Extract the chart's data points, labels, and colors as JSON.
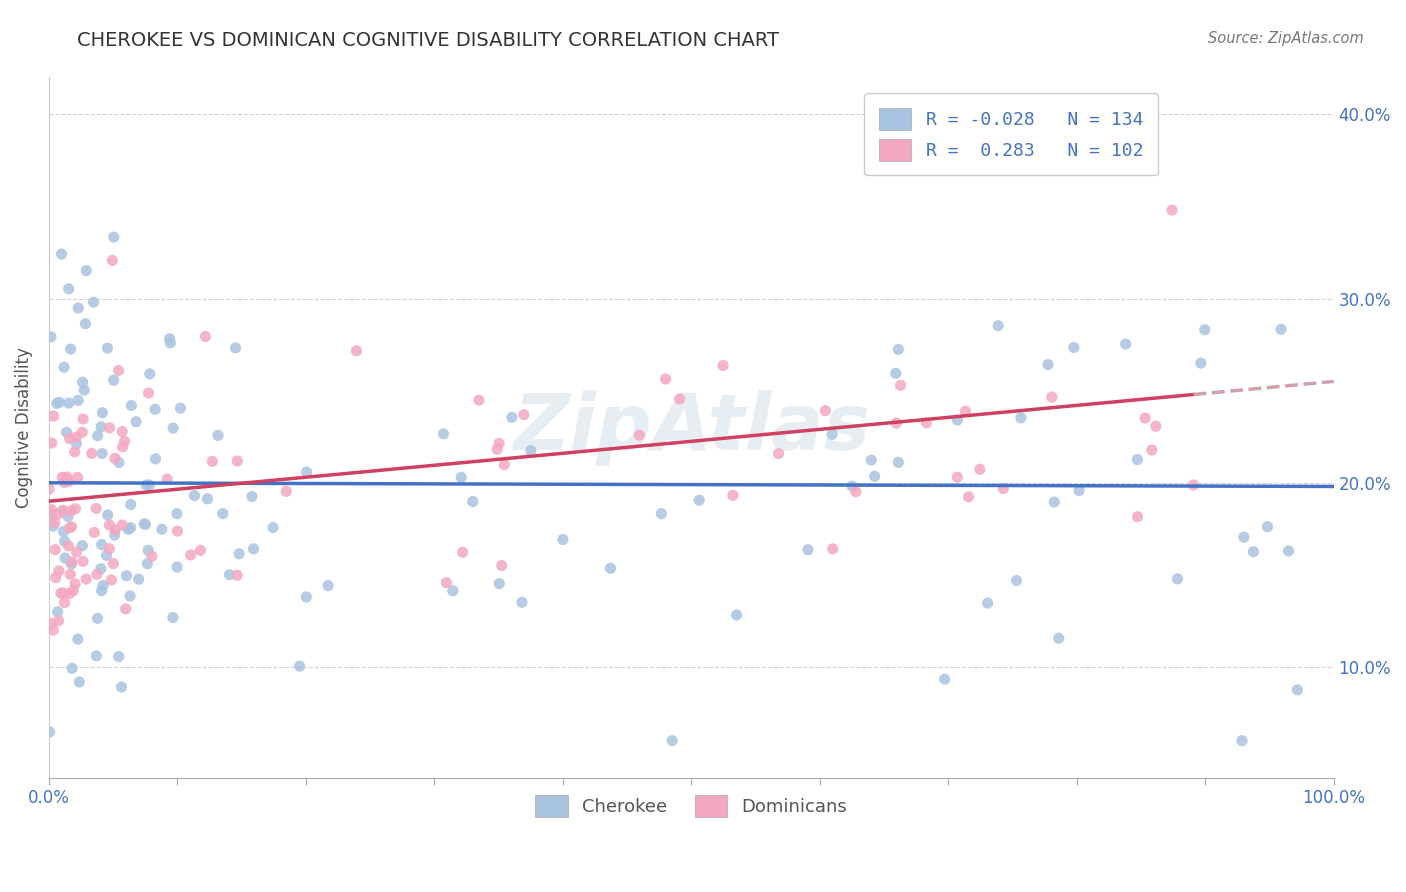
{
  "title": "CHEROKEE VS DOMINICAN COGNITIVE DISABILITY CORRELATION CHART",
  "source": "Source: ZipAtlas.com",
  "ylabel": "Cognitive Disability",
  "xlim": [
    0,
    100
  ],
  "ylim": [
    4,
    42
  ],
  "yticks": [
    10,
    20,
    30,
    40
  ],
  "ytick_labels": [
    "10.0%",
    "20.0%",
    "30.0%",
    "40.0%"
  ],
  "xticks": [
    0,
    10,
    20,
    30,
    40,
    50,
    60,
    70,
    80,
    90,
    100
  ],
  "cherokee_R": -0.028,
  "cherokee_N": 134,
  "dominican_R": 0.283,
  "dominican_N": 102,
  "cherokee_color": "#a8c4e0",
  "dominican_color": "#f4a8c0",
  "cherokee_line_color": "#4472c4",
  "dominican_line_color": "#d04060",
  "dominican_line_dashed_color": "#d0a0a8",
  "watermark": "ZipAtlas",
  "background_color": "#ffffff",
  "grid_color": "#cccccc"
}
